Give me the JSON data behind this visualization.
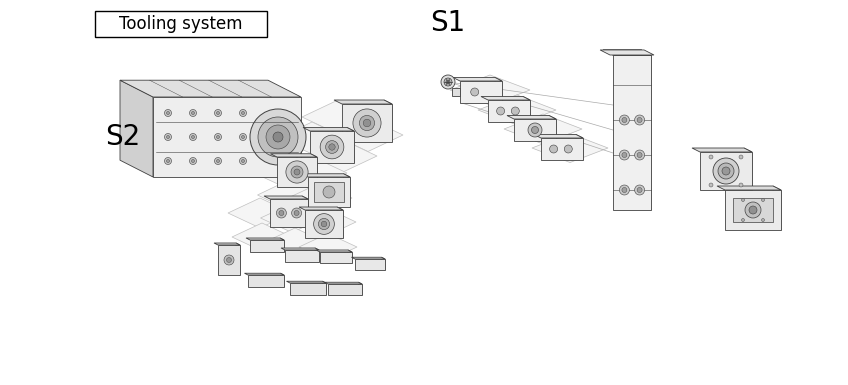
{
  "title": "Tooling system",
  "s1_label": "S1",
  "s2_label": "S2",
  "bg_color": "#ffffff",
  "lc": "#404040",
  "lc_light": "#888888",
  "fc_light": "#f0f0f0",
  "fc_mid": "#e0e0e0",
  "fc_dark": "#cccccc",
  "fc_darker": "#b8b8b8",
  "figsize": [
    8.48,
    3.85
  ],
  "dpi": 100,
  "title_fontsize": 12,
  "s_fontsize": 20
}
